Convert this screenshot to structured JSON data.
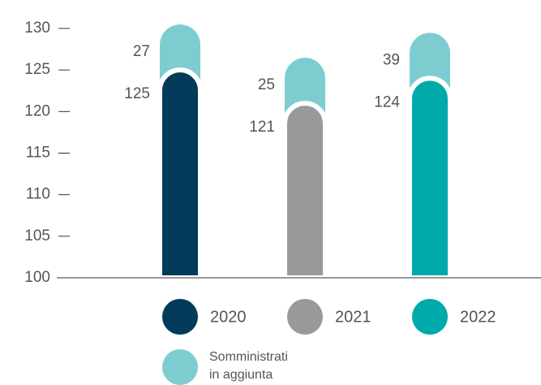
{
  "chart_data": {
    "type": "bar",
    "categories": [
      "2020",
      "2021",
      "2022"
    ],
    "series": [
      {
        "colors": [
          "#033a5a",
          "#98999b",
          "#00a9aa"
        ],
        "values": [
          125,
          121,
          124
        ]
      },
      {
        "name": "Somministrati in aggiunta",
        "color": "#7dcdd0",
        "values": [
          27,
          25,
          39
        ]
      }
    ],
    "ylim": [
      100,
      130
    ],
    "yticks": [
      100,
      105,
      110,
      115,
      120,
      125,
      130
    ]
  }
}
